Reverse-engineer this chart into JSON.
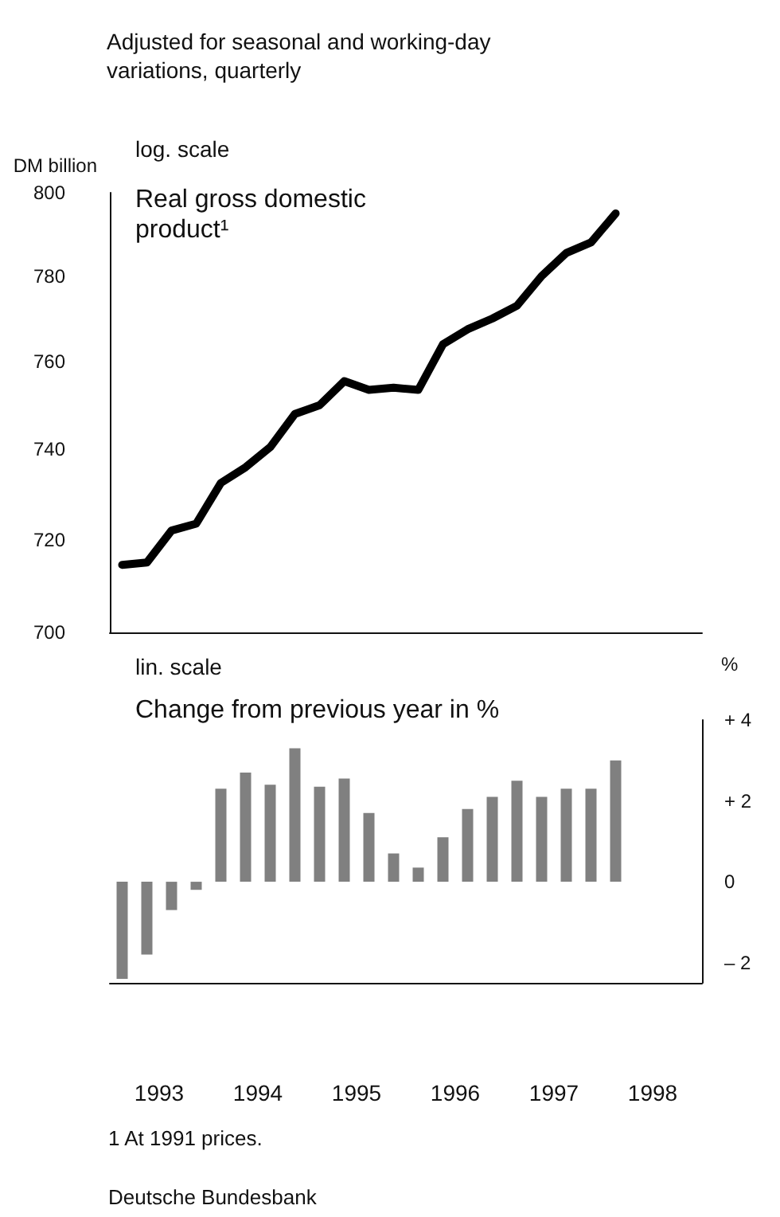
{
  "chart_data": [
    {
      "type": "line",
      "title": "Adjusted for seasonal and working-day variations, quarterly",
      "ylabel": "DM billion",
      "annotations": [
        "log. scale",
        "Real gross domestic product¹"
      ],
      "log": true,
      "ylim": [
        700,
        800
      ],
      "yticks": [
        700,
        720,
        740,
        760,
        780,
        800
      ],
      "xlim": [
        1993,
        1999
      ],
      "tick_labels": "y",
      "grid": false,
      "x": [
        1993.125,
        1993.375,
        1993.625,
        1993.875,
        1994.125,
        1994.375,
        1994.625,
        1994.875,
        1995.125,
        1995.375,
        1995.625,
        1995.875,
        1996.125,
        1996.375,
        1996.625,
        1996.875,
        1997.125,
        1997.375,
        1997.625,
        1997.875,
        1998.125
      ],
      "series": [
        {
          "color": "#000000",
          "values": [
            714.5,
            715,
            722,
            723.5,
            732.5,
            736,
            740.5,
            748,
            750,
            755.5,
            753.5,
            754,
            753.5,
            764,
            767.5,
            770,
            773,
            780,
            785.5,
            788,
            795
          ]
        }
      ]
    },
    {
      "type": "bar",
      "title": "Change from previous year in %",
      "ylabel": "%",
      "annotations": [
        "lin. scale",
        "1 At 1991 prices.",
        "Deutsche Bundesbank"
      ],
      "ylim": [
        -2.5,
        4
      ],
      "yticks": [
        {
          "value": -2,
          "label": "– 2"
        },
        0,
        {
          "value": 2,
          "label": "+ 2"
        },
        {
          "value": 4,
          "label": "+ 4"
        }
      ],
      "xlim": [
        1993,
        1999
      ],
      "xticks": [
        {
          "value": 1993.5,
          "label": "1993"
        },
        {
          "value": 1994.5,
          "label": "1994"
        },
        {
          "value": 1995.5,
          "label": "1995"
        },
        {
          "value": 1996.5,
          "label": "1996"
        },
        {
          "value": 1997.5,
          "label": "1997"
        },
        {
          "value": 1998.5,
          "label": "1998"
        }
      ],
      "grid": false,
      "x": [
        1993.125,
        1993.375,
        1993.625,
        1993.875,
        1994.125,
        1994.375,
        1994.625,
        1994.875,
        1995.125,
        1995.375,
        1995.625,
        1995.875,
        1996.125,
        1996.375,
        1996.625,
        1996.875,
        1997.125,
        1997.375,
        1997.625,
        1997.875,
        1998.125
      ],
      "series": [
        {
          "color": "#808080",
          "values": [
            -2.4,
            -1.8,
            -0.7,
            -0.2,
            2.3,
            2.7,
            2.4,
            3.3,
            2.35,
            2.55,
            1.7,
            0.7,
            0.35,
            1.1,
            1.8,
            2.1,
            2.5,
            2.1,
            2.3,
            2.3,
            3.0
          ]
        }
      ]
    }
  ]
}
